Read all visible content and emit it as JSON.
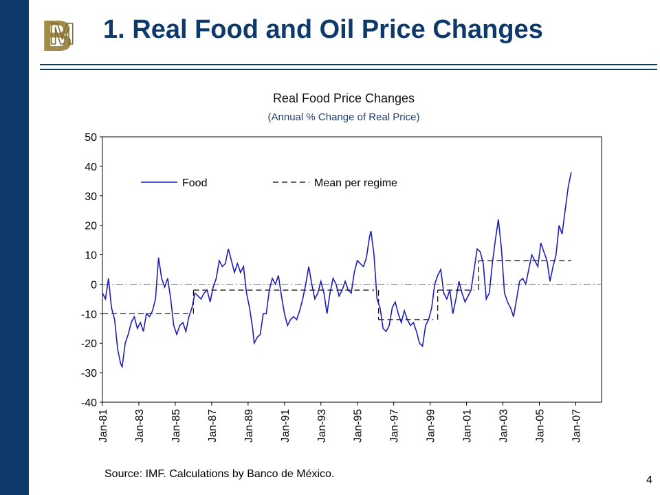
{
  "slide": {
    "title": "1. Real Food and Oil Price Changes",
    "source": "Source: IMF. Calculations by Banco de México.",
    "page_number": "4"
  },
  "colors": {
    "sidebar": "#0d3a6b",
    "title": "#0d3a6b",
    "logo": "#a08c4a",
    "food_line": "#1d1db5"
  },
  "chart_data": {
    "type": "line",
    "title": "Real Food Price Changes",
    "subtitle": "(Annual % Change of Real Price)",
    "xlabel": "",
    "ylabel": "",
    "ylim": [
      -40,
      50
    ],
    "yticks": [
      50,
      40,
      30,
      20,
      10,
      0,
      -10,
      -20,
      -30,
      -40
    ],
    "xticks": [
      "Jan-81",
      "Jan-83",
      "Jan-85",
      "Jan-87",
      "Jan-89",
      "Jan-91",
      "Jan-93",
      "Jan-95",
      "Jan-97",
      "Jan-99",
      "Jan-01",
      "Jan-03",
      "Jan-05",
      "Jan-07"
    ],
    "xlim": [
      "1981-01",
      "2008-06"
    ],
    "legend_position": "top-left",
    "series": [
      {
        "name": "Food",
        "style": "solid",
        "points": [
          [
            "1981-01",
            -3
          ],
          [
            "1981-03",
            -5
          ],
          [
            "1981-05",
            2
          ],
          [
            "1981-07",
            -8
          ],
          [
            "1981-09",
            -12
          ],
          [
            "1981-11",
            -22
          ],
          [
            "1982-01",
            -27
          ],
          [
            "1982-02",
            -28
          ],
          [
            "1982-04",
            -20
          ],
          [
            "1982-06",
            -17
          ],
          [
            "1982-08",
            -13
          ],
          [
            "1982-10",
            -11
          ],
          [
            "1982-12",
            -15
          ],
          [
            "1983-02",
            -13
          ],
          [
            "1983-04",
            -16
          ],
          [
            "1983-06",
            -10
          ],
          [
            "1983-08",
            -11
          ],
          [
            "1983-10",
            -9
          ],
          [
            "1983-12",
            -5
          ],
          [
            "1984-02",
            9
          ],
          [
            "1984-04",
            2
          ],
          [
            "1984-06",
            -1
          ],
          [
            "1984-08",
            2
          ],
          [
            "1984-10",
            -5
          ],
          [
            "1984-12",
            -14
          ],
          [
            "1985-02",
            -17
          ],
          [
            "1985-04",
            -14
          ],
          [
            "1985-06",
            -13
          ],
          [
            "1985-08",
            -16
          ],
          [
            "1985-10",
            -11
          ],
          [
            "1985-12",
            -8
          ],
          [
            "1986-02",
            -3
          ],
          [
            "1986-04",
            -4
          ],
          [
            "1986-06",
            -5
          ],
          [
            "1986-08",
            -3
          ],
          [
            "1986-10",
            -2
          ],
          [
            "1986-12",
            -6
          ],
          [
            "1987-02",
            -1
          ],
          [
            "1987-04",
            2
          ],
          [
            "1987-06",
            8
          ],
          [
            "1987-08",
            6
          ],
          [
            "1987-10",
            7
          ],
          [
            "1987-12",
            12
          ],
          [
            "1988-02",
            8
          ],
          [
            "1988-04",
            4
          ],
          [
            "1988-06",
            7
          ],
          [
            "1988-08",
            4
          ],
          [
            "1988-10",
            6
          ],
          [
            "1988-12",
            -3
          ],
          [
            "1989-02",
            -8
          ],
          [
            "1989-04",
            -15
          ],
          [
            "1989-05",
            -20
          ],
          [
            "1989-07",
            -18
          ],
          [
            "1989-09",
            -17
          ],
          [
            "1989-11",
            -10
          ],
          [
            "1990-01",
            -10
          ],
          [
            "1990-03",
            -2
          ],
          [
            "1990-05",
            2
          ],
          [
            "1990-07",
            0
          ],
          [
            "1990-09",
            3
          ],
          [
            "1990-11",
            -4
          ],
          [
            "1991-01",
            -10
          ],
          [
            "1991-03",
            -14
          ],
          [
            "1991-05",
            -12
          ],
          [
            "1991-07",
            -11
          ],
          [
            "1991-09",
            -12
          ],
          [
            "1991-11",
            -9
          ],
          [
            "1992-01",
            -5
          ],
          [
            "1992-03",
            0
          ],
          [
            "1992-05",
            6
          ],
          [
            "1992-07",
            0
          ],
          [
            "1992-09",
            -5
          ],
          [
            "1992-11",
            -3
          ],
          [
            "1993-01",
            1
          ],
          [
            "1993-03",
            -3
          ],
          [
            "1993-05",
            -10
          ],
          [
            "1993-07",
            -3
          ],
          [
            "1993-09",
            2
          ],
          [
            "1993-11",
            0
          ],
          [
            "1994-01",
            -4
          ],
          [
            "1994-03",
            -2
          ],
          [
            "1994-05",
            1
          ],
          [
            "1994-07",
            -2
          ],
          [
            "1994-09",
            -3
          ],
          [
            "1994-11",
            4
          ],
          [
            "1995-01",
            8
          ],
          [
            "1995-03",
            7
          ],
          [
            "1995-05",
            6
          ],
          [
            "1995-07",
            9
          ],
          [
            "1995-09",
            16
          ],
          [
            "1995-10",
            18
          ],
          [
            "1995-12",
            10
          ],
          [
            "1996-02",
            -5
          ],
          [
            "1996-04",
            -8
          ],
          [
            "1996-06",
            -15
          ],
          [
            "1996-08",
            -16
          ],
          [
            "1996-10",
            -14
          ],
          [
            "1996-12",
            -8
          ],
          [
            "1997-02",
            -6
          ],
          [
            "1997-04",
            -10
          ],
          [
            "1997-06",
            -13
          ],
          [
            "1997-08",
            -9
          ],
          [
            "1997-10",
            -12
          ],
          [
            "1997-12",
            -14
          ],
          [
            "1998-02",
            -13
          ],
          [
            "1998-04",
            -16
          ],
          [
            "1998-06",
            -20
          ],
          [
            "1998-08",
            -21
          ],
          [
            "1998-10",
            -14
          ],
          [
            "1998-12",
            -12
          ],
          [
            "1999-02",
            -8
          ],
          [
            "1999-04",
            0
          ],
          [
            "1999-06",
            3
          ],
          [
            "1999-08",
            5
          ],
          [
            "1999-10",
            -3
          ],
          [
            "1999-12",
            -5
          ],
          [
            "2000-02",
            -2
          ],
          [
            "2000-04",
            -10
          ],
          [
            "2000-06",
            -5
          ],
          [
            "2000-08",
            1
          ],
          [
            "2000-10",
            -3
          ],
          [
            "2000-12",
            -6
          ],
          [
            "2001-02",
            -4
          ],
          [
            "2001-04",
            -2
          ],
          [
            "2001-06",
            5
          ],
          [
            "2001-08",
            12
          ],
          [
            "2001-10",
            11
          ],
          [
            "2001-12",
            7
          ],
          [
            "2002-02",
            -5
          ],
          [
            "2002-04",
            -3
          ],
          [
            "2002-06",
            7
          ],
          [
            "2002-08",
            15
          ],
          [
            "2002-10",
            22
          ],
          [
            "2002-12",
            12
          ],
          [
            "2003-02",
            -3
          ],
          [
            "2003-04",
            -6
          ],
          [
            "2003-06",
            -8
          ],
          [
            "2003-08",
            -11
          ],
          [
            "2003-10",
            -5
          ],
          [
            "2003-12",
            1
          ],
          [
            "2004-02",
            2
          ],
          [
            "2004-04",
            0
          ],
          [
            "2004-06",
            5
          ],
          [
            "2004-08",
            10
          ],
          [
            "2004-10",
            8
          ],
          [
            "2004-12",
            6
          ],
          [
            "2005-02",
            14
          ],
          [
            "2005-04",
            11
          ],
          [
            "2005-06",
            8
          ],
          [
            "2005-08",
            1
          ],
          [
            "2005-10",
            6
          ],
          [
            "2005-12",
            10
          ],
          [
            "2006-02",
            20
          ],
          [
            "2006-04",
            17
          ],
          [
            "2006-06",
            25
          ],
          [
            "2006-08",
            33
          ],
          [
            "2006-10",
            38
          ]
        ]
      },
      {
        "name": "Mean per regime",
        "style": "dashed",
        "segments": [
          [
            [
              "1981-01",
              -10
            ],
            [
              "1985-10",
              -10
            ]
          ],
          [
            [
              "1986-01",
              -2
            ],
            [
              "1995-12",
              -2
            ]
          ],
          [
            [
              "1996-03",
              -12
            ],
            [
              "1999-03",
              -12
            ]
          ],
          [
            [
              "1999-06",
              -2
            ],
            [
              "2001-06",
              -2
            ]
          ],
          [
            [
              "2001-09",
              8
            ],
            [
              "2006-10",
              8
            ]
          ]
        ]
      }
    ]
  }
}
